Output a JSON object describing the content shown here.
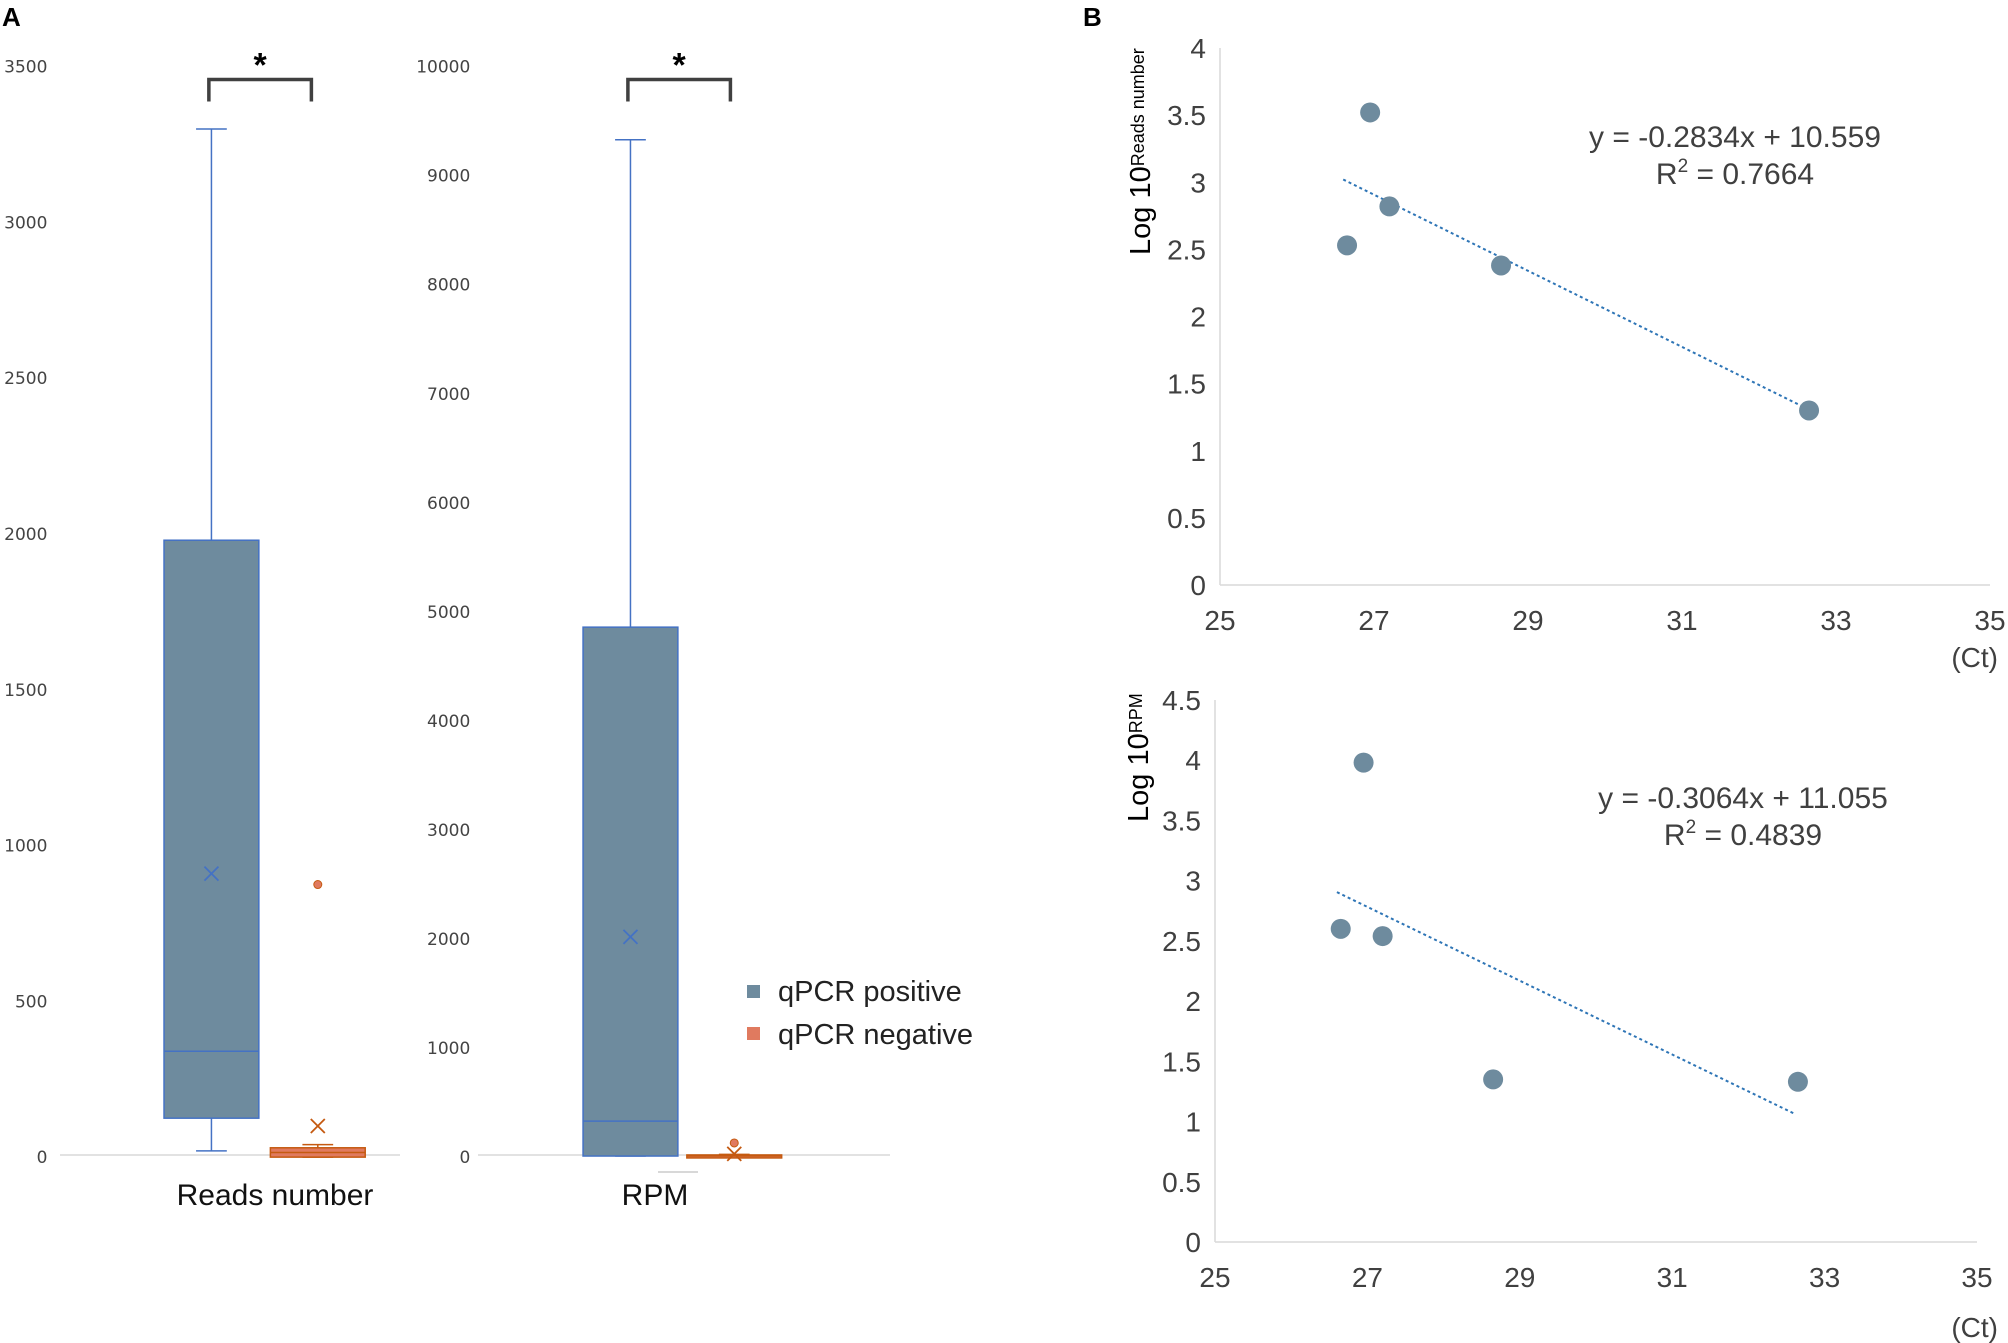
{
  "panel_a_label": "A",
  "panel_b_label": "B",
  "colors": {
    "positive_fill": "#6e8b9e",
    "positive_stroke": "#4472c4",
    "negative_fill": "#e07a5f",
    "negative_stroke": "#c55a11",
    "scatter": "#6e8b9e",
    "trend": "#2e75b6",
    "axis": "#d9d9d9"
  },
  "legend": {
    "positive": "qPCR positive",
    "negative": "qPCR negative"
  },
  "chart_data": [
    {
      "id": "boxplot-reads",
      "type": "box",
      "xlabel": "Reads number",
      "ylim": [
        0,
        3500
      ],
      "yticks": [
        0,
        500,
        1000,
        1500,
        2000,
        2500,
        3000,
        3500
      ],
      "significance": "*",
      "series": [
        {
          "name": "qPCR positive",
          "min": 20,
          "q1": 125,
          "median": 340,
          "q3": 1980,
          "max": 3300,
          "mean": 910,
          "outliers": []
        },
        {
          "name": "qPCR negative",
          "min": 0,
          "q1": 0,
          "median": 15,
          "q3": 30,
          "max": 40,
          "mean": 100,
          "outliers": [
            875
          ]
        }
      ]
    },
    {
      "id": "boxplot-rpm",
      "type": "box",
      "xlabel": "RPM",
      "ylim": [
        0,
        10000
      ],
      "yticks": [
        0,
        1000,
        2000,
        3000,
        4000,
        5000,
        6000,
        7000,
        8000,
        9000,
        10000
      ],
      "significance": "*",
      "series": [
        {
          "name": "qPCR positive",
          "min": 10,
          "q1": 10,
          "median": 330,
          "q3": 4860,
          "max": 9330,
          "mean": 2020,
          "outliers": []
        },
        {
          "name": "qPCR negative",
          "min": 0,
          "q1": 0,
          "median": 10,
          "q3": 20,
          "max": 25,
          "mean": 30,
          "outliers": [
            130
          ]
        }
      ]
    },
    {
      "id": "scatter-reads",
      "type": "scatter",
      "ylabel_main": "Log 10",
      "ylabel_sub": "Reads number",
      "xlabel": "(Ct)",
      "xlim": [
        25,
        35
      ],
      "xticks": [
        25,
        27,
        29,
        31,
        33,
        35
      ],
      "ylim": [
        0,
        4
      ],
      "yticks": [
        "0",
        "0.5",
        "1",
        "1.5",
        "2",
        "2.5",
        "3",
        "3.5",
        "4"
      ],
      "points": [
        [
          26.65,
          2.53
        ],
        [
          26.95,
          3.52
        ],
        [
          27.2,
          2.82
        ],
        [
          28.65,
          2.38
        ],
        [
          32.65,
          1.3
        ]
      ],
      "trendline": {
        "slope": -0.2834,
        "intercept": 10.559,
        "x_range": [
          26.6,
          32.6
        ]
      },
      "equation": "y = -0.2834x + 10.559",
      "r2_prefix": "R",
      "r2_exp": "2",
      "r2_value": " = 0.7664"
    },
    {
      "id": "scatter-rpm",
      "type": "scatter",
      "ylabel_main": "Log 10",
      "ylabel_sub": "RPM",
      "xlabel": "(Ct)",
      "xlim": [
        25,
        35
      ],
      "xticks": [
        25,
        27,
        29,
        31,
        33,
        35
      ],
      "ylim": [
        0,
        4.5
      ],
      "yticks": [
        "0",
        "0.5",
        "1",
        "1.5",
        "2",
        "2.5",
        "3",
        "3.5",
        "4",
        "4.5"
      ],
      "points": [
        [
          26.65,
          2.6
        ],
        [
          26.95,
          3.98
        ],
        [
          27.2,
          2.54
        ],
        [
          28.65,
          1.35
        ],
        [
          32.65,
          1.33
        ]
      ],
      "trendline": {
        "slope": -0.3064,
        "intercept": 11.055,
        "x_range": [
          26.6,
          32.6
        ]
      },
      "equation": "y = -0.3064x + 11.055",
      "r2_prefix": "R",
      "r2_exp": "2",
      "r2_value": " = 0.4839"
    }
  ]
}
